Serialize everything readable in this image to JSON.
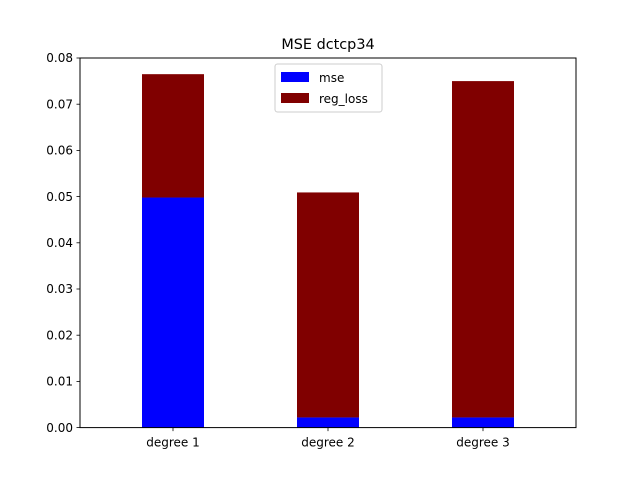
{
  "chart_data": {
    "type": "bar",
    "stacked": true,
    "title": "MSE dctcp34",
    "xlabel": "",
    "ylabel": "",
    "categories": [
      "degree 1",
      "degree 2",
      "degree 3"
    ],
    "series": [
      {
        "name": "mse",
        "color": "#0000ff",
        "values": [
          0.0498,
          0.0022,
          0.0022
        ]
      },
      {
        "name": "reg_loss",
        "color": "#800000",
        "values": [
          0.0267,
          0.0487,
          0.0728
        ]
      }
    ],
    "ylim": [
      0,
      0.08
    ],
    "yticks": [
      "0.00",
      "0.01",
      "0.02",
      "0.03",
      "0.04",
      "0.05",
      "0.06",
      "0.07",
      "0.08"
    ],
    "legend_position": "top-center",
    "grid": false
  }
}
